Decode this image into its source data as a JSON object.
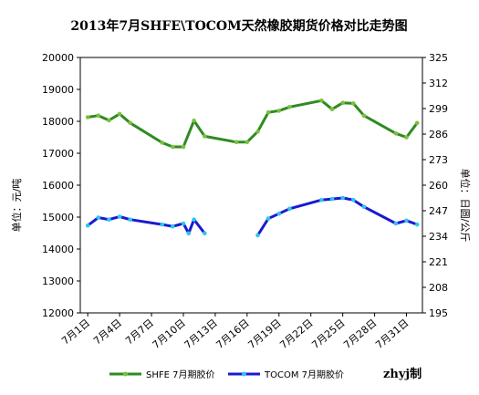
{
  "chart_data": {
    "type": "line",
    "title": "2013年7月SHFE\\TOCOM天然橡胶期货价格对比走势图",
    "ylabel_left": "单位：元/吨",
    "ylabel_right": "单位：日圆/公斤",
    "ylim_left": [
      12000,
      20000
    ],
    "ylim_right": [
      195,
      325
    ],
    "yticks_left": [
      "12000",
      "13000",
      "14000",
      "15000",
      "16000",
      "17000",
      "18000",
      "19000",
      "20000"
    ],
    "yticks_right": [
      "195",
      "208",
      "221",
      "234",
      "247",
      "260",
      "273",
      "286",
      "299",
      "312",
      "325"
    ],
    "x_tick_labels": [
      "7月1日",
      "7月4日",
      "7月7日",
      "7月10日",
      "7月13日",
      "7月16日",
      "7月19日",
      "7月22日",
      "7月25日",
      "7月28日",
      "7月31日"
    ],
    "x_tick_days": [
      1,
      4,
      7,
      10,
      13,
      16,
      19,
      22,
      25,
      28,
      31
    ],
    "x_range": [
      0.3,
      32.5
    ],
    "grid": false,
    "legend_position": "bottom",
    "series": [
      {
        "name": "SHFE 7月期胶价",
        "axis": "left",
        "color": "#2e8b21",
        "marker_color": "#7cbf3f",
        "points": [
          [
            1,
            18130
          ],
          [
            2,
            18180
          ],
          [
            3,
            18030
          ],
          [
            4,
            18230
          ],
          [
            5,
            17950
          ],
          [
            8,
            17330
          ],
          [
            9,
            17200
          ],
          [
            10,
            17200
          ],
          [
            11,
            18020
          ],
          [
            12,
            17530
          ],
          [
            15,
            17350
          ],
          [
            16,
            17350
          ],
          [
            17,
            17680
          ],
          [
            18,
            18280
          ],
          [
            19,
            18330
          ],
          [
            20,
            18450
          ],
          [
            23,
            18650
          ],
          [
            24,
            18380
          ],
          [
            25,
            18580
          ],
          [
            26,
            18560
          ],
          [
            27,
            18180
          ],
          [
            30,
            17620
          ],
          [
            31,
            17500
          ],
          [
            32,
            17950
          ]
        ]
      },
      {
        "name": "TOCOM 7月期胶价",
        "axis": "right",
        "color": "#1a1ad0",
        "marker_color": "#2ec6ec",
        "points": [
          [
            1,
            239.5
          ],
          [
            2,
            243.5
          ],
          [
            3,
            242.5
          ],
          [
            4,
            244.0
          ],
          [
            5,
            242.5
          ],
          [
            8,
            240.0
          ],
          [
            9,
            239.0
          ],
          [
            10,
            240.5
          ],
          [
            10.5,
            235.5
          ],
          [
            11,
            242.5
          ],
          [
            12,
            235.5
          ],
          [
            17,
            234.5
          ],
          [
            18,
            243.0
          ],
          [
            19,
            245.5
          ],
          [
            20,
            248.0
          ],
          [
            23,
            252.5
          ],
          [
            24,
            253.0
          ],
          [
            25,
            253.5
          ],
          [
            26,
            252.5
          ],
          [
            27,
            249.0
          ],
          [
            30,
            240.5
          ],
          [
            31,
            242.0
          ],
          [
            32,
            240.0
          ]
        ],
        "gap_after_index": 10
      }
    ]
  },
  "credit": "zhyj制"
}
